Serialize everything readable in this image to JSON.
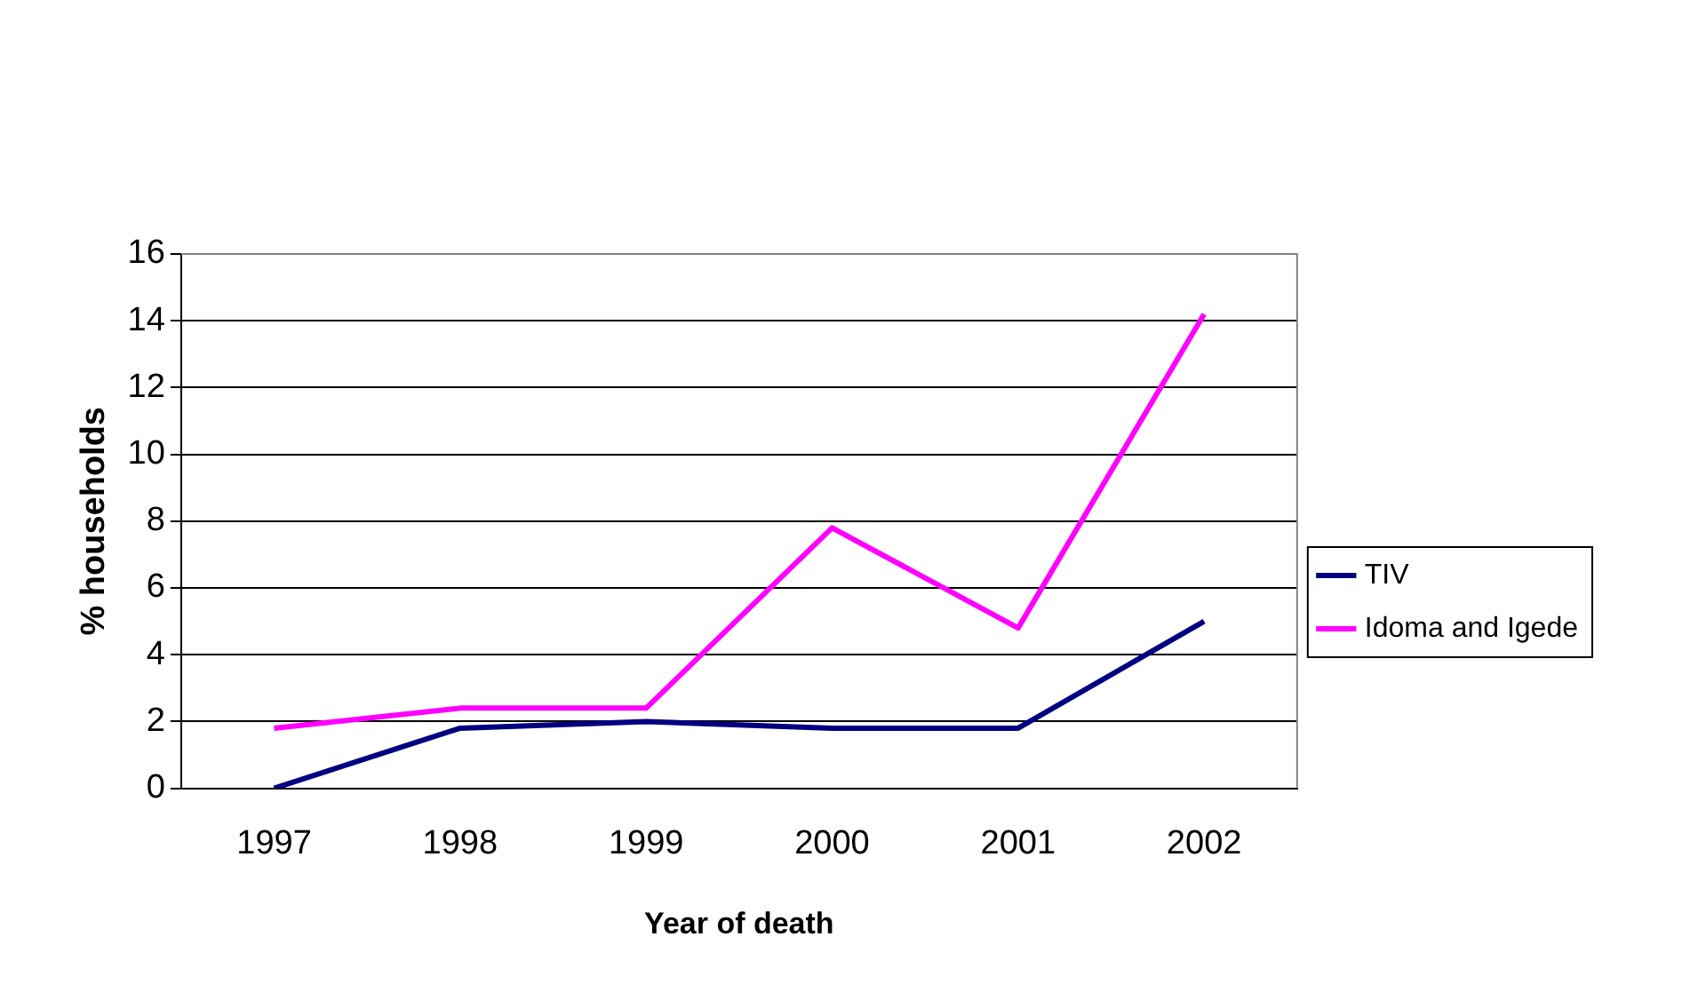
{
  "chart_data": {
    "type": "line",
    "xlabel": "Year of death",
    "ylabel": "% households",
    "categories": [
      "1997",
      "1998",
      "1999",
      "2000",
      "2001",
      "2002"
    ],
    "series": [
      {
        "name": "TIV",
        "color": "#000080",
        "values": [
          0,
          1.8,
          2.0,
          1.8,
          1.8,
          5.0
        ]
      },
      {
        "name": "Idoma and Igede",
        "color": "#ff00ff",
        "values": [
          1.8,
          2.4,
          2.4,
          7.8,
          4.8,
          14.2
        ]
      }
    ],
    "ylim": [
      0,
      16
    ],
    "yticks": [
      0,
      2,
      4,
      6,
      8,
      10,
      12,
      14,
      16
    ],
    "grid": "y",
    "legend": "right",
    "marker": "none",
    "line_style": "solid"
  }
}
